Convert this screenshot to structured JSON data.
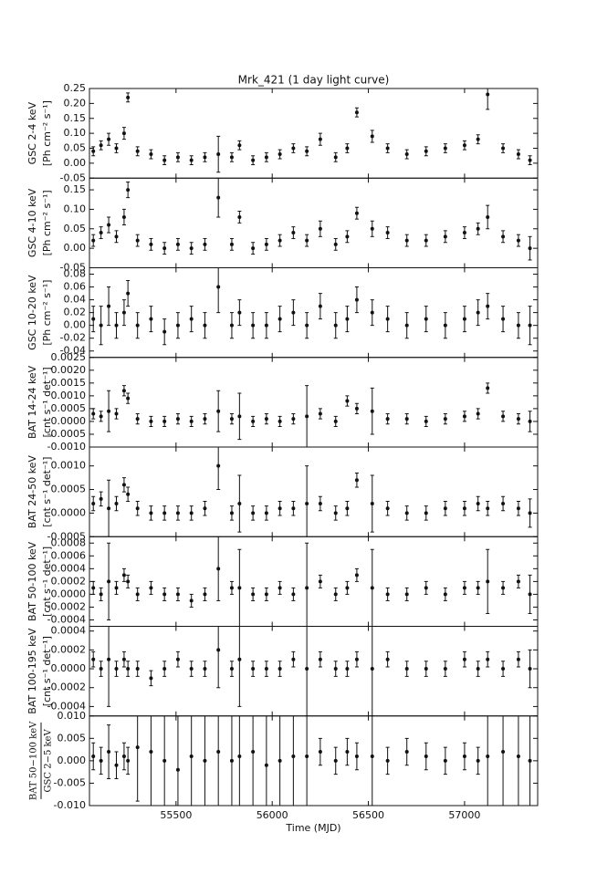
{
  "chart_data": [
    {
      "type": "scatter",
      "title": "Mrk_421 (1 day light curve)",
      "ylabel": [
        "GSC 2-4 keV",
        "[Ph cm⁻² s⁻¹]"
      ],
      "color": "#111111",
      "xlim": [
        55050,
        57380
      ],
      "ylim": [
        -0.05,
        0.25
      ],
      "yticks": [
        -0.05,
        {
          "value": 0,
          "label": "0.00"
        },
        0.05,
        {
          "value": 0.1,
          "label": "0.10"
        },
        0.15,
        {
          "value": 0.2,
          "label": "0.20"
        },
        0.25
      ],
      "x": [
        55070,
        55110,
        55150,
        55190,
        55230,
        55250,
        55300,
        55370,
        55440,
        55510,
        55580,
        55650,
        55720,
        55790,
        55830,
        55900,
        55970,
        56040,
        56110,
        56180,
        56250,
        56330,
        56390,
        56440,
        56520,
        56600,
        56700,
        56800,
        56900,
        57000,
        57070,
        57120,
        57200,
        57280,
        57340
      ],
      "values": [
        0.04,
        0.06,
        0.08,
        0.05,
        0.1,
        0.22,
        0.04,
        0.03,
        0.01,
        0.02,
        0.01,
        0.02,
        0.03,
        0.02,
        0.06,
        0.01,
        0.02,
        0.03,
        0.05,
        0.04,
        0.08,
        0.02,
        0.05,
        0.17,
        0.09,
        0.05,
        0.03,
        0.04,
        0.05,
        0.06,
        0.08,
        0.23,
        0.05,
        0.03,
        0.01
      ],
      "errors": [
        0.015,
        0.015,
        0.02,
        0.015,
        0.02,
        0.015,
        0.015,
        0.015,
        0.015,
        0.015,
        0.015,
        0.015,
        0.06,
        0.015,
        0.015,
        0.015,
        0.015,
        0.015,
        0.015,
        0.015,
        0.02,
        0.015,
        0.015,
        0.015,
        0.02,
        0.015,
        0.015,
        0.015,
        0.015,
        0.015,
        0.015,
        0.05,
        0.015,
        0.015,
        0.015
      ]
    },
    {
      "type": "scatter",
      "ylabel": [
        "GSC 4-10 keV",
        "[Ph cm⁻² s⁻¹]"
      ],
      "color": "#111111",
      "xlim": [
        55050,
        57380
      ],
      "ylim": [
        -0.05,
        0.18
      ],
      "yticks": [
        -0.05,
        {
          "value": 0,
          "label": "0.00"
        },
        0.05,
        {
          "value": 0.1,
          "label": "0.10"
        },
        0.15
      ],
      "x": [
        55070,
        55110,
        55150,
        55190,
        55230,
        55250,
        55300,
        55370,
        55440,
        55510,
        55580,
        55650,
        55720,
        55790,
        55830,
        55900,
        55970,
        56040,
        56110,
        56180,
        56250,
        56330,
        56390,
        56440,
        56520,
        56600,
        56700,
        56800,
        56900,
        57000,
        57070,
        57120,
        57200,
        57280,
        57340
      ],
      "values": [
        0.02,
        0.04,
        0.06,
        0.03,
        0.08,
        0.15,
        0.02,
        0.01,
        0.0,
        0.01,
        0.0,
        0.01,
        0.13,
        0.01,
        0.08,
        0.0,
        0.01,
        0.02,
        0.04,
        0.02,
        0.05,
        0.01,
        0.03,
        0.09,
        0.05,
        0.04,
        0.02,
        0.02,
        0.03,
        0.04,
        0.05,
        0.08,
        0.03,
        0.02,
        0.0
      ],
      "errors": [
        0.015,
        0.015,
        0.02,
        0.015,
        0.02,
        0.02,
        0.015,
        0.015,
        0.015,
        0.015,
        0.015,
        0.015,
        0.05,
        0.015,
        0.015,
        0.015,
        0.015,
        0.015,
        0.015,
        0.015,
        0.02,
        0.015,
        0.015,
        0.015,
        0.02,
        0.015,
        0.015,
        0.015,
        0.015,
        0.015,
        0.015,
        0.03,
        0.015,
        0.015,
        0.03
      ]
    },
    {
      "type": "scatter",
      "ylabel": [
        "GSC 10-20 keV",
        "[Ph cm⁻² s⁻¹]"
      ],
      "color": "#111111",
      "xlim": [
        55050,
        57380
      ],
      "ylim": [
        -0.05,
        0.09
      ],
      "yticks": [
        -0.04,
        -0.02,
        {
          "value": 0,
          "label": "0.00"
        },
        0.02,
        0.04,
        0.06,
        0.08
      ],
      "x": [
        55070,
        55110,
        55150,
        55190,
        55230,
        55250,
        55300,
        55370,
        55440,
        55510,
        55580,
        55650,
        55720,
        55790,
        55830,
        55900,
        55970,
        56040,
        56110,
        56180,
        56250,
        56330,
        56390,
        56440,
        56520,
        56600,
        56700,
        56800,
        56900,
        57000,
        57070,
        57120,
        57200,
        57280,
        57340
      ],
      "values": [
        0.01,
        0.0,
        0.03,
        0.0,
        0.02,
        0.05,
        0.0,
        0.01,
        -0.01,
        0.0,
        0.01,
        0.0,
        0.06,
        0.0,
        0.02,
        0.0,
        0.0,
        0.01,
        0.02,
        0.0,
        0.03,
        0.0,
        0.01,
        0.04,
        0.02,
        0.01,
        0.0,
        0.01,
        0.0,
        0.01,
        0.02,
        0.03,
        0.01,
        0.0,
        0.0
      ],
      "errors": [
        0.02,
        0.03,
        0.03,
        0.02,
        0.02,
        0.02,
        0.02,
        0.02,
        0.02,
        0.02,
        0.02,
        0.02,
        0.04,
        0.02,
        0.02,
        0.02,
        0.02,
        0.02,
        0.02,
        0.02,
        0.02,
        0.02,
        0.02,
        0.02,
        0.02,
        0.02,
        0.02,
        0.02,
        0.02,
        0.02,
        0.02,
        0.02,
        0.02,
        0.02,
        0.03
      ]
    },
    {
      "type": "scatter",
      "ylabel": [
        "BAT 14-24 keV",
        "[cnt s⁻¹ det⁻¹]"
      ],
      "color": "#111111",
      "xlim": [
        55050,
        57380
      ],
      "ylim": [
        -0.001,
        0.0025
      ],
      "yticks": [
        {
          "value": -0.001,
          "label": "-0.0010"
        },
        -0.0005,
        {
          "value": 0,
          "label": "0.0000"
        },
        0.0005,
        {
          "value": 0.001,
          "label": "0.0010"
        },
        0.0015,
        {
          "value": 0.002,
          "label": "0.0020"
        },
        0.0025
      ],
      "x": [
        55070,
        55110,
        55150,
        55190,
        55230,
        55250,
        55300,
        55370,
        55440,
        55510,
        55580,
        55650,
        55720,
        55790,
        55830,
        55900,
        55970,
        56040,
        56110,
        56180,
        56250,
        56330,
        56390,
        56440,
        56520,
        56600,
        56700,
        56800,
        56900,
        57000,
        57070,
        57120,
        57200,
        57280,
        57340
      ],
      "values": [
        0.0003,
        0.0002,
        0.0004,
        0.0003,
        0.0012,
        0.0009,
        0.0001,
        0,
        0,
        0.0001,
        0,
        0.0001,
        0.0004,
        0.0001,
        0.0002,
        0,
        0.0001,
        0,
        0.0001,
        0.0002,
        0.0003,
        0,
        0.0008,
        0.0005,
        0.0004,
        0.0001,
        0.0001,
        0,
        0.0001,
        0.0002,
        0.0003,
        0.0013,
        0.0002,
        0.0001,
        0
      ],
      "errors": [
        0.0002,
        0.0002,
        0.0008,
        0.0002,
        0.0002,
        0.0002,
        0.0002,
        0.0002,
        0.0002,
        0.0002,
        0.0002,
        0.0002,
        0.0008,
        0.0002,
        0.0009,
        0.0002,
        0.0002,
        0.0002,
        0.0002,
        0.0012,
        0.0002,
        0.0002,
        0.0002,
        0.0002,
        0.0009,
        0.0002,
        0.0002,
        0.0002,
        0.0002,
        0.0002,
        0.0002,
        0.0002,
        0.0002,
        0.0002,
        0.0004
      ]
    },
    {
      "type": "scatter",
      "ylabel": [
        "BAT 24-50 keV",
        "[cnt s⁻¹ det⁻¹]"
      ],
      "color": "#111111",
      "xlim": [
        55050,
        57380
      ],
      "ylim": [
        -0.0005,
        0.0014
      ],
      "yticks": [
        -0.0005,
        {
          "value": 0,
          "label": "0.0000"
        },
        0.0005,
        {
          "value": 0.001,
          "label": "0.0010"
        }
      ],
      "x": [
        55070,
        55110,
        55150,
        55190,
        55230,
        55250,
        55300,
        55370,
        55440,
        55510,
        55580,
        55650,
        55720,
        55790,
        55830,
        55900,
        55970,
        56040,
        56110,
        56180,
        56250,
        56330,
        56390,
        56440,
        56520,
        56600,
        56700,
        56800,
        56900,
        57000,
        57070,
        57120,
        57200,
        57280,
        57340
      ],
      "values": [
        0.0002,
        0.0003,
        0.0001,
        0.0002,
        0.0006,
        0.0004,
        0.0001,
        0,
        0,
        0,
        0,
        0.0001,
        0.001,
        0,
        0.0002,
        0,
        0,
        0.0001,
        0.0001,
        0.0002,
        0.0002,
        0,
        0.0001,
        0.0007,
        0.0002,
        0.0001,
        0,
        0,
        0.0001,
        0.0001,
        0.0002,
        0.0001,
        0.0002,
        0.0001,
        0
      ],
      "errors": [
        0.00015,
        0.00015,
        0.0006,
        0.00015,
        0.00015,
        0.00015,
        0.00015,
        0.00015,
        0.00015,
        0.00015,
        0.00015,
        0.00015,
        0.0005,
        0.00015,
        0.0006,
        0.00015,
        0.00015,
        0.00015,
        0.00015,
        0.0008,
        0.00015,
        0.00015,
        0.00015,
        0.00015,
        0.0006,
        0.00015,
        0.00015,
        0.00015,
        0.00015,
        0.00015,
        0.00015,
        0.00015,
        0.00015,
        0.00015,
        0.0003
      ]
    },
    {
      "type": "scatter",
      "ylabel": [
        "BAT 50-100 keV",
        "[cnt s⁻¹ det⁻¹]"
      ],
      "color": "#111111",
      "xlim": [
        55050,
        57380
      ],
      "ylim": [
        -0.0005,
        0.0009
      ],
      "yticks": [
        -0.0004,
        -0.0002,
        {
          "value": 0,
          "label": "0.0000"
        },
        0.0002,
        0.0004,
        0.0006,
        0.0008
      ],
      "x": [
        55070,
        55110,
        55150,
        55190,
        55230,
        55250,
        55300,
        55370,
        55440,
        55510,
        55580,
        55650,
        55720,
        55790,
        55830,
        55900,
        55970,
        56040,
        56110,
        56180,
        56250,
        56330,
        56390,
        56440,
        56520,
        56600,
        56700,
        56800,
        56900,
        57000,
        57070,
        57120,
        57200,
        57280,
        57340
      ],
      "values": [
        0.0001,
        0,
        0.0002,
        0.0001,
        0.0003,
        0.0002,
        0,
        0.0001,
        0,
        0,
        -0.0001,
        0,
        0.0004,
        0.0001,
        0.0001,
        0,
        0,
        0.0001,
        0,
        0.0001,
        0.0002,
        0,
        0.0001,
        0.0003,
        0.0001,
        0,
        0,
        0.0001,
        0,
        0.0001,
        0.0001,
        0.0002,
        0.0001,
        0.0002,
        0
      ],
      "errors": [
        0.0001,
        0.0001,
        0.0006,
        0.0001,
        0.0001,
        0.0001,
        0.0001,
        0.0001,
        0.0001,
        0.0001,
        0.0001,
        0.0001,
        0.0005,
        0.0001,
        0.0006,
        0.0001,
        0.0001,
        0.0001,
        0.0001,
        0.0007,
        0.0001,
        0.0001,
        0.0001,
        0.0001,
        0.0006,
        0.0001,
        0.0001,
        0.0001,
        0.0001,
        0.0001,
        0.0001,
        0.0005,
        0.0001,
        0.0001,
        0.0003
      ]
    },
    {
      "type": "scatter",
      "ylabel": [
        "BAT 100-195 keV",
        "[cnt s⁻¹ det⁻¹]"
      ],
      "color": "#111111",
      "xlim": [
        55050,
        57380
      ],
      "ylim": [
        -0.0005,
        0.00045
      ],
      "yticks": [
        -0.0004,
        -0.0002,
        {
          "value": 0,
          "label": "0.0000"
        },
        0.0002,
        0.0004
      ],
      "x": [
        55070,
        55110,
        55150,
        55190,
        55230,
        55250,
        55300,
        55370,
        55440,
        55510,
        55580,
        55650,
        55720,
        55790,
        55830,
        55900,
        55970,
        56040,
        56110,
        56180,
        56250,
        56330,
        56390,
        56440,
        56520,
        56600,
        56700,
        56800,
        56900,
        57000,
        57070,
        57120,
        57200,
        57280,
        57340
      ],
      "values": [
        0.0001,
        0,
        0.0001,
        0,
        0.0001,
        0,
        0,
        -0.0001,
        0,
        0.0001,
        0,
        0,
        0.0002,
        0,
        0.0001,
        0,
        0,
        0,
        0.0001,
        0,
        0.0001,
        0,
        0,
        0.0001,
        0,
        0.0001,
        0,
        0,
        0,
        0.0001,
        0,
        0.0001,
        0,
        0.0001,
        0
      ],
      "errors": [
        8e-05,
        8e-05,
        0.0005,
        8e-05,
        8e-05,
        8e-05,
        8e-05,
        8e-05,
        8e-05,
        8e-05,
        8e-05,
        8e-05,
        0.0004,
        8e-05,
        0.0005,
        8e-05,
        8e-05,
        8e-05,
        8e-05,
        0.0005,
        8e-05,
        8e-05,
        8e-05,
        8e-05,
        0.0005,
        8e-05,
        8e-05,
        8e-05,
        8e-05,
        8e-05,
        8e-05,
        8e-05,
        8e-05,
        8e-05,
        0.0002
      ]
    },
    {
      "type": "scatter",
      "ylabel": [
        "BAT 50−100 keV",
        "GSC 2−5 keV"
      ],
      "xlabel": "Time (MJD)",
      "color": "#111111",
      "xlim": [
        55050,
        57380
      ],
      "ylim": [
        -0.01,
        0.01
      ],
      "xticks": [
        55500,
        56000,
        56500,
        57000
      ],
      "yticks": [
        {
          "value": -0.01,
          "label": "-0.010"
        },
        -0.005,
        {
          "value": 0,
          "label": "0.000"
        },
        0.005,
        {
          "value": 0.01,
          "label": "0.010"
        }
      ],
      "x": [
        55070,
        55110,
        55150,
        55190,
        55230,
        55250,
        55300,
        55370,
        55440,
        55510,
        55580,
        55650,
        55720,
        55790,
        55830,
        55900,
        55970,
        56040,
        56110,
        56180,
        56250,
        56330,
        56390,
        56440,
        56520,
        56600,
        56700,
        56800,
        56900,
        57000,
        57070,
        57120,
        57200,
        57280,
        57340
      ],
      "values": [
        0.001,
        0,
        0.002,
        -0.001,
        0.001,
        0,
        0.003,
        0.002,
        0,
        -0.002,
        0.001,
        0,
        0.002,
        0,
        0.001,
        0.002,
        -0.001,
        0,
        0.001,
        0.001,
        0.002,
        0,
        0.002,
        0.001,
        0.001,
        0,
        0.002,
        0.001,
        0,
        0.001,
        0,
        0.001,
        0.002,
        0.001,
        0
      ],
      "errors": [
        0.003,
        0.003,
        0.006,
        0.003,
        0.003,
        0.003,
        0.012,
        0.012,
        0.012,
        0.012,
        0.012,
        0.012,
        0.012,
        0.012,
        0.012,
        0.012,
        0.012,
        0.012,
        0.012,
        0.012,
        0.003,
        0.003,
        0.003,
        0.003,
        0.012,
        0.003,
        0.003,
        0.003,
        0.003,
        0.003,
        0.003,
        0.012,
        0.012,
        0.012,
        0.012
      ]
    }
  ]
}
